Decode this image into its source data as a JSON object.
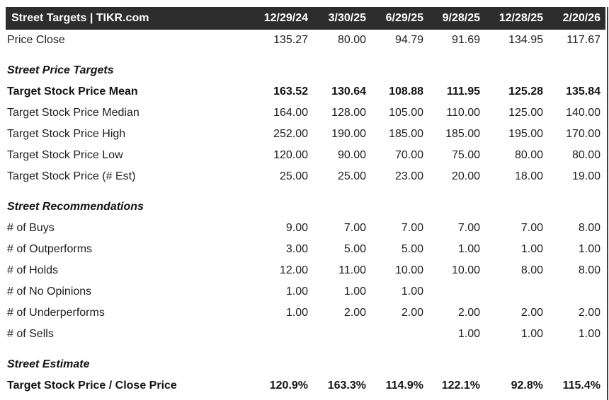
{
  "header": {
    "title": "Street Targets | TIKR.com",
    "columns": [
      "12/29/24",
      "3/30/25",
      "6/29/25",
      "9/28/25",
      "12/28/25",
      "2/20/26"
    ]
  },
  "rows": [
    {
      "label": "Price Close",
      "style": "normal",
      "values": [
        "135.27",
        "80.00",
        "94.79",
        "91.69",
        "134.95",
        "117.67"
      ]
    },
    {
      "label": "Street Price Targets",
      "style": "section",
      "values": [
        "",
        "",
        "",
        "",
        "",
        ""
      ]
    },
    {
      "label": "Target Stock Price Mean",
      "style": "bold",
      "values": [
        "163.52",
        "130.64",
        "108.88",
        "111.95",
        "125.28",
        "135.84"
      ]
    },
    {
      "label": "Target Stock Price Median",
      "style": "normal",
      "values": [
        "164.00",
        "128.00",
        "105.00",
        "110.00",
        "125.00",
        "140.00"
      ]
    },
    {
      "label": "Target Stock Price High",
      "style": "normal",
      "values": [
        "252.00",
        "190.00",
        "185.00",
        "185.00",
        "195.00",
        "170.00"
      ]
    },
    {
      "label": "Target Stock Price Low",
      "style": "normal",
      "values": [
        "120.00",
        "90.00",
        "70.00",
        "75.00",
        "80.00",
        "80.00"
      ]
    },
    {
      "label": "Target Stock Price (# Est)",
      "style": "normal",
      "values": [
        "25.00",
        "25.00",
        "23.00",
        "20.00",
        "18.00",
        "19.00"
      ]
    },
    {
      "label": "Street Recommendations",
      "style": "section",
      "values": [
        "",
        "",
        "",
        "",
        "",
        ""
      ]
    },
    {
      "label": "# of Buys",
      "style": "normal",
      "values": [
        "9.00",
        "7.00",
        "7.00",
        "7.00",
        "7.00",
        "8.00"
      ]
    },
    {
      "label": "# of Outperforms",
      "style": "normal",
      "values": [
        "3.00",
        "5.00",
        "5.00",
        "1.00",
        "1.00",
        "1.00"
      ]
    },
    {
      "label": "# of Holds",
      "style": "normal",
      "values": [
        "12.00",
        "11.00",
        "10.00",
        "10.00",
        "8.00",
        "8.00"
      ]
    },
    {
      "label": "# of No Opinions",
      "style": "normal",
      "values": [
        "1.00",
        "1.00",
        "1.00",
        "",
        "",
        ""
      ]
    },
    {
      "label": "# of Underperforms",
      "style": "normal",
      "values": [
        "1.00",
        "2.00",
        "2.00",
        "2.00",
        "2.00",
        "2.00"
      ]
    },
    {
      "label": "# of Sells",
      "style": "normal",
      "values": [
        "",
        "",
        "",
        "1.00",
        "1.00",
        "1.00"
      ]
    },
    {
      "label": "Street Estimate",
      "style": "section",
      "values": [
        "",
        "",
        "",
        "",
        "",
        ""
      ]
    },
    {
      "label": "Target Stock Price / Close Price",
      "style": "bold",
      "values": [
        "120.9%",
        "163.3%",
        "114.9%",
        "122.1%",
        "92.8%",
        "115.4%"
      ]
    }
  ],
  "colors": {
    "header_bg": "#2d2d2d",
    "header_text": "#ffffff",
    "body_text": "#1e1e1e",
    "right_border": "#414141"
  }
}
